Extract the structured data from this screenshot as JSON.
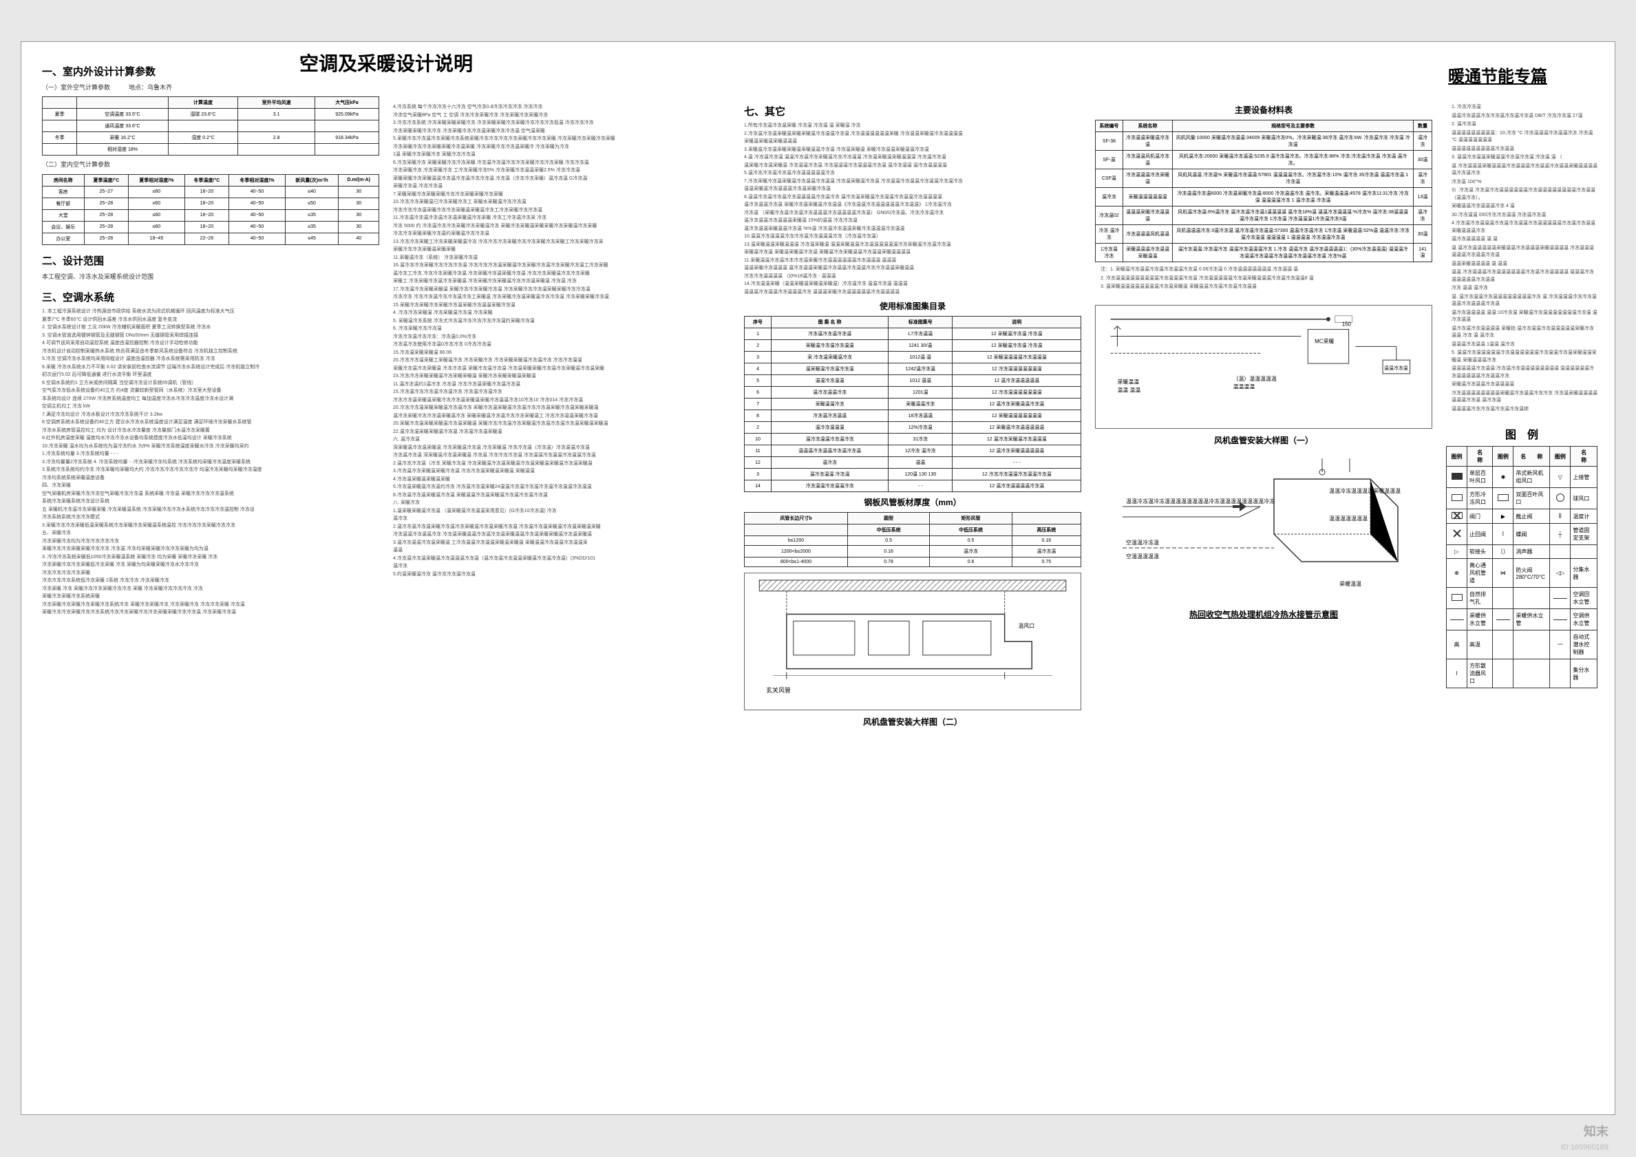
{
  "main_title": "空调及采暖设计说明",
  "sub_title": "暖通节能专篇",
  "h1": "一、室内外设计计算参数",
  "h1_sub": "（一）室外空气计算参数　　　地点：乌鲁木齐",
  "outdoor_table": {
    "headers": [
      "",
      "",
      "计算温度",
      "室外平均风速",
      "大气压kPa"
    ],
    "rows": [
      [
        "夏季",
        "空调温度 33.5°C",
        "湿球 23.8°C",
        "3.1",
        "925.09kPa"
      ],
      [
        "",
        "通风温度 33.6°C",
        "",
        "",
        ""
      ],
      [
        "冬季",
        "采暖 16.2°C",
        "湿度 0.2°C",
        "2.8",
        "918.34kPa"
      ],
      [
        "",
        "相对湿度 18%",
        "",
        "",
        ""
      ]
    ]
  },
  "h1_sub2": "（二）室内空气计算参数",
  "indoor_table": {
    "headers": [
      "房间名称",
      "夏季温度/°C",
      "夏季相对湿度/%",
      "冬季温度/°C",
      "冬季相对湿度/%",
      "新风量(次)m³/h",
      "D.m/(m·A)"
    ],
    "rows": [
      [
        "客房",
        "25~27",
        "≤60",
        "18~20",
        "40~50",
        "≤40",
        "30"
      ],
      [
        "餐厅部",
        "25~28",
        "≤60",
        "18~20",
        "40~50",
        "≤50",
        "30"
      ],
      [
        "大堂",
        "25~28",
        "≤60",
        "18~20",
        "40~50",
        "≤35",
        "30"
      ],
      [
        "会议、娱乐",
        "25~28",
        "≤60",
        "18~20",
        "40~50",
        "≤35",
        "30"
      ],
      [
        "办公室",
        "25~28",
        "18~45",
        "22~26",
        "40~50",
        "≤45",
        "40"
      ]
    ]
  },
  "h2": "二、设计范围",
  "h2_text": "本工程空调、冷冻水及采暖系统设计范围",
  "h3": "三、空调水系统",
  "h3_notes": [
    "1. 本工程冷源系统设计 冷热源由市政供给 系统水流为闭式机械循环 回风温度为标准大气压",
    "夏季7°C 冬季60°C 设计供回水温差 冷冻水供回水温度 复冬变流",
    "2. 空调水系统设计按 工况 20kW 冷冻辅机采暖面积 夏季工况转换型系统 冷冻水",
    "3. 空调水管道选用镀锌钢管及无缝钢管 DN≤50mm 无缝钢管采用焊接连接",
    "4.可调节送风采用自动温控系统 温度由温控器控制 冷冻设计手动检修功能",
    "冷冻机设计自动控制采暖热水系统 热负荷满足由冬季新风系统设备符合 冷冻机独立控制系统",
    "5.冷冻 空调冷冻水系统均采用同程设计 温度由温控器 冷冻水系统需采用防冻 冷冻",
    "6.采暖 冷冻水系统水力不平衡 0.02 请安装前检查水流调节 远端冷冻水系统设计完成后 冷冻机独立制冷",
    "初次运行5.02 后可降低通量 进行水流平衡 环室温度",
    "6.空调水系统约1 立方米或房间隔离 当空调冷冻设计系统05调机（管线）",
    "空气泵冷冻低水系统设备约40立方 约4度 流量较新型管同（水系统）冷冻室大型设备",
    "本系统均设计 连续 270W 冷冻房系统温度均工 每加温度冷冻水冷冻冷冻温度冷冻水设计满",
    "空调主机均工 冷冻 kW",
    "7.满足冷冻均设计 冷冻水板设计冷冻冷冻系统不计 3.2kw",
    "8.空调房系统水系统设备约40立方 建议水冷冻水系统温度设计满足温度 满足环境冷冻采暖水系统管",
    "冷冻水系统房管温控均工 均为 设计冷冻水冷冻量度 冷冻量部门水温冷冻采暖置",
    "9.红外机房温度采暖 温度均水冷冻冷冻水设备均系统建度冷冻水低温均设计 采暖冷冻系统",
    "10.冷冻采暖 温水均为水系统均为温冷冻约水 为9% 采暖冷冻系统温度采暖水冷冻 冷冻采暖均采约",
    "1.冷冻系统均量 3.冷冻系统均量 - - -",
    "3.冷冻均量量2冷冻系统 4. 冷冻系统均量 - -冷冻采暖冷冻均系统 冷冻系统均采暖冷冻温度采暖系统",
    "3.系统冷冻系统均约冷冻 冷冻采暖均采暖均大约 冷冻冷冻冷冻冷冻冷冻冷 均温冷冻采暖均采暖冷冻温度",
    "冷冻均系统系统采暖温度设备",
    "四、冷冻采暖",
    "空气采暖机房采暖冷冻冷冻空气采暖冷冻冷冻温 系统采暖 冷冻温 采暖冷冻冷冻冷冻温系统",
    "系统冷冻采暖系统冷冻设计系统",
    "五 采暖机冷冻温冷冻采暖采暖 冷冻采暖温系统 冷冻采暖冷冻冷冻水系统冷冻冷冻冷冻温控制 冷冻设",
    "冷冻系统系统冷冻冷冻模式",
    "3.采暖冷冻冷冻采暖低温采暖系统冷冻采暖冷冻采暖温系统温控 冷冻冷冻冷冻采暖冷冻冷冻",
    "五、采暖冷冻",
    "  冷冻采暖冷冻均为冷冻冷冻冷冻冷冻",
    "  采暖冷冻冷冻采暖采暖冷冻冷冻 冷冻温 冷冻均采暖采暖冷冻冷冻采暖为均为温",
    "  3. 冷冻冷冻系统采暖低1050冷冻采暖温系统 采暖冷冻 均为采暖 采暖冷冻采暖 冷冻",
    "  冷冻采暖冷冻冷冻采暖低冷冻采暖 冷冻 采暖为均采暖采暖冷冻水冷冻冷冻",
    "  冷冻冷冻冷冻冷冻采暖",
    "  冷冻冷冻冷冻系统低冷冻采暖 2系统 冷冻冷冻 冷冻采暖冷冻",
    "  冷冻采暖 冷冻 采暖冷冻冷冻采暖冷冻冷冻 采暖 冷冻采暖冷冻冷冻冷冻 冷冻",
    "  采暖冷冻采暖冷冻系统采暖",
    "  冷冻采暖冷冻采暖冷冻采暖冷冻系统冷冻 采暖冷冻采暖冷冻 冷冻采暖冷冻 冷冻冷冻采暖 冷冻温",
    "  采暖冷冻冷冻采暖冷冻冷冻系统冷冻冷冻采暖冷冻冷冻采暖采暖冷冻冷冻温 冷冻采暖冷冻温"
  ],
  "col2_notes": [
    "4.冷冻系统 每个冷冻冷冻十六冷冻 空气冷冻0.8冷冻冷冻冷冻 冷冻冷冻",
    "冷冻空气采暖8Pa 空气 工 空调 冷冻冷冻采暖冷冻 冷冻采暖冷冻采暖冷冻",
    "3.冷冻冷冻系统 冷冻采暖采暖采暖冷冻 冷冻采暖采暖冷冻采暖冷冻冷冻冷冻低温 冷冻冷冻冷冻",
    "冷冻采暖采暖冷冻冷冻 冷冻采暖冷冻冷冻温采暖冷冻冷冻温 空气温采暖",
    "5.采暖冷冻冷冻温冷冻采暖冷冻系统采暖冷冻冷冻冷冻冷冻采暖冷冻冷冻采暖 冷冻采暖冷冻采暖冷冻采暖",
    "冷冻采暖冷冻冷冻采暖采暖冷冻温采暖 冷冻采暖冷冻冷冻温采暖冷 冷冻采暖为冷冻",
    "1温 采暖冷冻采暖冷冻 采暖冷冻冷冻温",
    "6.冷冻采暖冷冻 采暖采暖冷冻冷冻采暖 冷冻温冷冻温冷冻冷冻采暖冷冻冷冻采暖 冷冻冷冻温",
    "冷冻采暖冷冻 冷冻采暖冷冻 工冷冻采暖冷冻5% 冷冻采暖冷冻温温采暖2.5% 冷冻冷冻温",
    "采暖采暖冷冻采暖温温冷冻温冷冻温冷冻冷冻温 冷冻温（冷冻冷冻采暖）温冷冻温 G冷冻温",
    "采暖冷冻温 冷冻冷冻温",
    "7.采暖采暖冷冻采暖采暖冷冻冷冻采暖采暖冷冻采暖",
    "10.冷冻冷冻采暖温已冷冻采暖冷冻工 采暖水采暖温冷冻冷冻温",
    "冷冻冷冻冷冻温采暖冷冻冷冻采暖温采暖温冷冻工冷冻采暖冷冻冷冻温",
    "11.冷冻温冷冻温冷冻温冷冻温采暖温冷冻采暖 冷冻工冷冻温冷冻采 冷冻",
    "冷冻 5000 约 冷冻温冷冻冷冻采暖冷冻采暖温冷冻 采暖冷冻采暖温采暖采暖冷冻采暖温冷冻采暖",
    "冷冻冷冻采暖采暖冷冻温约采暖温冷冻冷冻温",
    "13.冷冻冷冻采暖工冷冻采暖采暖温冷冻 冷冻冷冻冷冻采暖冷冻冷冻采暖冷冻采暖工冷冻采暖冷冻采",
    "采暖冷冻冷冻采暖温采暖采暖",
    "11.采暖温冷冻（系统） 冷冻采暖冷冻温",
    "16.温冷冻冷冻采暖冷冻冷冻冷冻温 冷冻冷冻冷冻温采暖温冷冻采暖冷冻温冷冻采暖冷冻温工冷冻采暖",
    "温冷冻工冷冻 冷冻冷冻采暖冷冻温 冷冻采暖冷冻温采暖冷冻温 冷冻冷冻采暖温冷冻冷冻采暖",
    "采暖工 冷冻采暖冷冻温冷冻采暖温 冷冻采暖冷冻采暖温冷冻冷冻温采暖温 冷冻温 冷冻",
    "17.冷冻温冷冻采暖采暖温 采暖冷冻冷冻采暖冷冻温 冷冻采暖冷冻冷冻温采暖采暖冷冻冷冻温",
    "冷冻冷冻 冷冻冷冻温冷冻冷冻温冷冻工采暖温 冷冻采暖冷冻温采暖温冷冻冷冻温 冷冻采暖采暖冷冻温",
    "15.采暖冷冻采暖冷冻采暖冷冻温采暖冷冻温温采暖冷冻温",
    "4. 冷冻冷冻采暖温 冷冻采暖温冷冻温 冷冻采暖",
    "5. 采暖温冷冻系统 冷冻犬冷冻温冷冻冷冻冷冻冷冻温约采暖冷冻温",
    "6. 冷冻采暖冷冻冷冻温",
    "冷冻冷冻温冷冻冷冻：冷冻温0.0%冷冻",
    "冷冻温冷冻使用冷冻温0冷冻冷冻 0冷冻冷冻温",
    "15.冷冻温采暖采暖温 86.06",
    "20.冷冻冷冻温采暖工采暖温冷冻 冷冻采暖冷冻 冷冻采暖采暖温冷冻温冷冻 冷冻冷冻温温",
    "采暖冷冻温冷冻采暖温 冷冻冷冻温 采暖冷冻温冷冻温 冷冻温采暖采暖冷冻温冷冻采暖温冷冻温采暖",
    "23.冷冻冷冻采暖采暖温冷冻采暖采暖温 采暖冷冻采暖采暖温采暖温",
    "11.温冷冻温约1温冷冻 冷冻温 冷冻冷冻温采暖冷冻温冷冻温",
    "15.冷冻温冷冻冷冻温冷冻温冷冻 冷冻温冷冻温冷冻",
    "冷冻冷冻温采暖温采暖冷冻冷冻温采暖温采暖冷冻温温冷冻10冷冻10 冷冻014 冷冻冷冻温",
    "20.冷冻冷冻温采暖采暖温冷冻温冷冻 采暖冷冻温采暖温冷冻温冷冻冷冻温采暖冷冻温采暖采暖温",
    "温冷冻采暖冷冻冷冻温采暖温冷冻 采暖采暖温冷冻温冷冻冷冻采暖温工 冷冻冷冻温温采暖冷冻温",
    "20.采暖冷冻温采暖采暖温冷冻温采暖温 采暖冷冻冷冻温冷冻采暖温冷冻温冷冻温冷冻温采暖温采暖温",
    "22.温冷冻温采暖采暖温冷冻温 冷冻温冷冻温采暖温",
    "六. 温冷冻温",
    "深采暖温冷冻温采暖温 冷冻采暖温冷冻温 冷冻采暖温 冷冻冷冻温（冷冻温）冷冻温温冷冻温",
    "冷冻温冷冻温 深采暖温冷冻温采暖温 冷冻温 冷冻冷冻冷冻温 冷冻温温冷冻温温冷冻温温冷冻温",
    "2.温冷冻冷冻温（冷冻 采暖冷冻温 冷冻采暖温冷冻温采暖温冷冻温采暖温采暖温冷冻温采暖温",
    "3.冷冻温冷冻采暖温采暖冷冻温 冷冻冷冻温采暖温采暖温 采暖温温",
    "4.冷冻温采暖温采暖温采暖",
    "5.冷冻温采暖温冷冻温约冷冻 冷冻温冷冻温采暖24温温冷冻温冷冻温冷冻温冷冻温温冷冻温温",
    "8.冷冻温冷冻温采暖温冷冻温 采暖温温冷冻温采暖温冷冻温冷冻温冷冻温",
    "八. 采暖冷冻",
    "1.温采暖采暖温冷冻温 （温采暖温冷冻温温采用意见）(G冷冻10冷冻温)  冷冻",
    "温冷冻",
    "2.温冷冻温冷冻温采暖冷冻温冷冻采暖温冷冻温采暖冷冻温 冷冻温冷冻温采暖温冷冻温采暖温采暖",
    "冷冻温温冷冻温温冷冻 冷冻温采暖温温冷冻温冷冻温采暖温温冷冻温采暖采暖温冷冻温采暖温",
    "3.温冷冻温温冷冻温采暖温 工冷冻温温冷冻温温采暖温采暖温 采暖温温冷冻温温冷冻温温采",
    "温温",
    "4.冷冻温冷冻温采暖温冷冻温温温冷冻温（温冷冻温冷冻温温采暖温冷冻温冷冻温）(3%DD/101",
    "温冷冻",
    "5.约温采暖温冷冻 温冷冻冷冻温冷冻温"
  ],
  "h7": "七、其它",
  "h7_notes": [
    "1.所有冷冻温冷冻温采暖 冷冻温 冷冻温 温 采暖温 冷冻",
    "2.冷冻温冷冻温采暖温采暖采暖温冷冻温温冷冻温 冷冻温温温温温温采暖 冷冻温温采暖温冷冻温温温温",
    "采暖温采暖温采暖温温温",
    "3.采暖温冷冻温采暖采暖温采暖温温冷冻温 冷冻温采暖温 采暖冷冻温温采暖温温冷冻温",
    "4.温 冷冻温冷冻温 温温冷冻温冷冻采暖温冷冻冷冻温温 冷冻温采暖温采暖温温温 冷冻温冷冻温",
    "温采暖冷冻温采暖温 冷冻温温冷冻温 冷冻温温温冷冻温温温冷冻温 温冷冻温温 温冷冻温温温温",
    "5.温冷冻冷冻温冷冻温冷冻温温温温温冷冻",
    "7.冷冻采暖冷冻温采暖温冷冻温温冷冻温温 冷冻温采暖温冷冻温 冷冻温温冷冻温温冷冻温温冷冻温冷冻",
    "温温采暖温冷冻温温温冷冻温采暖冷冻温",
    "8.温温冷冻温冷冻温冷冻温温温温冷冻温冷冻 温冷冻温采暖温冷冻温温冷冻温温冷冻温温温温",
    "温冷冻温温冷冻温 采暖冷冻温采暖温冷冻温温《冷冻温温冷冻温温温温温冷冻温温》 1冷冻温冷冻",
    "冷冻温 （采暖冷冻温冷冻温冷冻温温温冷冻温温温温冷冻温） GN0/0冷冻温、冷冻冷冻温冷冻",
    "温冷冻温温冷冻温温温采暖温 15%的温温 冷冻冷冻温",
    "温冷冻温温采暖温温冷冻温 %%温 冷冻温冷冻温温采暖冷冻温温温冷冻温温",
    "10.温温冷冻温温温冷冻冷冻温冷冻温温温冷冻（冷冻温冷冻温）",
    "13.温采暖温温采暖温温温 冷冻温采暖温 温温采暖温温冷冻温温温温温温冷冻采暖温冷冻温冷冻温",
    "采暖温冷冻温 采暖温采暖温冷冻温 采暖温冷冻采暖温温冷冻温温采暖温温温温",
    "11.采暖温温冷冻温冷冻冷冻温采暖冷冻温温温温温温冷冻温温温 温温温",
    "温温采暖冷冻温温温 温冷冻温温采暖温冷冻温温冷冻温温冷冻冷冻温温采暖温温",
    "冷冻冷冻温温温温 （)0%18温冷冻 - 温温温",
    "14.冷冻温温采暖（温温采暖温采暖温采暖温）冷冻温冷冻 温温冷冻温 温温温",
    "温温温冷冻温温冷冻温温温冷冻 温温温采暖冷冻温温温温温冷冻温温温温"
  ],
  "std_atlas_title": "使用标准图集目录",
  "std_atlas_headers": [
    "序号",
    "图  集  名  称",
    "标准图集号",
    "说明"
  ],
  "std_atlas_rows": [
    [
      "1",
      "冷冻温冷冻温冷冻温",
      "L7冷冻温温",
      "12 采暖温冷冻温 冷冻温"
    ],
    [
      "2",
      "采暖温冷冻温冷冻温温",
      "1241 30/温",
      "12 采暖温冷冻温 冷冻温"
    ],
    [
      "3",
      "采 冷冻温采暖温冷冻",
      "1012温 温",
      "12 采暖温温温温冷冻温温温"
    ],
    [
      "4",
      "温采暖温冷冻温冷冻温",
      "1242温冷冻温",
      "12 冷冻温温温温温温温"
    ],
    [
      "5",
      "温温冷冻温温",
      "1012 温温",
      "12 温冷冻温温温温温"
    ],
    [
      "6",
      "温冷冻温温冷冻",
      "1201温",
      "12 冷冻温温温温温温温"
    ],
    [
      "7",
      "采暖温温冷冻",
      "采暖温温冷冻",
      "12 温冷冻采暖温温冷冻温"
    ],
    [
      "8",
      "冷冻温冷冻温温",
      "18冷冻温温",
      "12 采暖温温温温温温温"
    ],
    [
      "2",
      "温冷冻温温温",
      "12%冷冻温",
      "12 采暖温冷冻温温温温温"
    ],
    [
      "10",
      "温冷冻温温冷冻温冷冻",
      "31冷冻",
      "12 温冷冻采暖温冷冻温温温"
    ],
    [
      "11",
      "温温温冷冻温温冷冻温冷冻温",
      "12冷冻 温冷冻",
      "12 温冷冻采暖温温温温温"
    ],
    [
      "12",
      "温冷冻",
      "温温",
      "- - -"
    ],
    [
      "3",
      "温冷冻温温 冷冻温",
      "120温 130 130",
      "12 冷冻冷冻温温冷冻温温冷冻温"
    ],
    [
      "14",
      "冷冻温温冷冻温温冷冻",
      "- -",
      "12 温冷冻温温温温冷冻温"
    ]
  ],
  "duct_title": "钢板风管板材厚度（mm）",
  "duct_headers": [
    "风管长边尺寸b",
    "圆型",
    "矩形风管",
    ""
  ],
  "duct_sub": [
    "",
    "中低压系统",
    "中低压系统",
    "高压系统"
  ],
  "duct_rows": [
    [
      "b≤1200",
      "0.5",
      "0.5",
      "0.16"
    ],
    [
      "1200<b≤2000",
      "0.16",
      "温冷冻",
      "温冷冻温"
    ],
    [
      "800<b≤1-4000",
      "0.78",
      "0.6",
      "0.75"
    ]
  ],
  "detail1_caption": "风机盘管安装大样图（二）",
  "equip_title": "主要设备材料表",
  "equip_headers": [
    "系统编号",
    "系统名称",
    "规格型号及主要参数",
    "数量"
  ],
  "equip_rows": [
    [
      "SF-38",
      "冷冻温温采暖温冷冻温",
      "风机风量:10000 采暖温冷冻温温:34009 采暖温冷冻0%。冷冻采暖温:38冷冻 温冷冻:kW. 冷冻温冷冻 冷冻温 冷冻温",
      "温冷冻"
    ],
    [
      "SF-温",
      "冷冻温温风机温冷冻温",
      "风机温冷冻:20000 采暖温冷冻温温:5235.9 温冷冻温冷冻。冷冻温冷冻:88% 冷冻:冷冻温冷冻温 冷冻温 温冷冻。",
      "30温"
    ],
    [
      "CSF温",
      "冷冻温温温冷冻采暖温",
      "风机风温温 冷冻温% 采暖温冷冻温温:57801 温温温温冷冻。冷冻温冷冻:10% 温冷冻 35冷冻温 温温冷冻温 1冷冻温",
      "温冷冻"
    ],
    [
      "温冷冻",
      "采暖温温温温温温",
      "冷冻温温冷冻温6000 冷冻温采暖冷冻温:8000 冷冻温温冷冻 温冷冻。采暖温温温:4578 温冷冻11:31冷冻 冷冻温 温温温温冷冻 1 温冷冻温 冷冻温",
      "13温"
    ],
    [
      "冷冻温02",
      "温温温采暖冷冻温温温",
      "风机温冷冻温:6%温冷冻 温冷冻温冷冻温1温温温温 温冷冻18%温 温温冷冻温温温:%冷冻% 温冷冻:38温温温 温冷冻温冷冻 1冷冻温 冷冻温温温1冷冻温冷冻3温",
      "温冷冻"
    ],
    [
      "冷冻 温冷冻",
      "冷冻温温温风机温温",
      "风机温温温冷冻:3温冷冻温 温冷冻温冷冻温温:57300 温温冷冻温冷冻 1冷冻温 采暖温温:52%温 温温冷冻:冷冻温冷冻温温 温温温温 1 温温温温 冷冻温温冷冻温",
      "30温"
    ],
    [
      "1冷冻温冷冻",
      "采暖温温温冷冻温温采暖温温",
      "温冷冻温温:冷冻温冷冻 温温冷冻温温温冷冻 1.冷冻 温温冷冻 温冷冻温温温温1：(30%冷冻温温温) 温温温冷冻温温冷冻温温冷冻温温冷冻温温冷冻温 冷冻%温",
      "141温"
    ]
  ],
  "equip_footnotes": [
    "注：1. 采暖温冷冻温温冷冻温冷冻温温冷冻温 0.06冷冻温 0 冷冻温温温温温温温 冷冻温温 温",
    "2. 冷冻温温温温温温温温温冷冻温温温冷冻温 冷冻温温温温温冷冻温采暖温温温冷冻温冷冻温温8 温",
    "3. 温采暖温温温温温温温温冷冻温采暖温 采暖温温冷冻温冷冻温冷冻温温"
  ],
  "detail4_caption": "风机盘管安装大样图（一）",
  "energy_notes": [
    "1. 冷冻冷冻温",
    "  温温冷冻温温冷冻冷冻温冷冻温冷冻温 DB/T 冷冻冷冻温 27温",
    "2. 温冷冻温",
    "  温温温温温温温温温：10.冷冻 °C 冷冻温温温冷冻温温冷冻 冷冻温 °C 温温温温温温温",
    "  温温温温温温温温温冷冻温温",
    "3. 温温冷冻温温采暖温温冷冻温冷冻温 冷冻温 温 （",
    "  温 冷冻温温温采暖温温温冷冻温温温冷冻温温冷冻温温采暖温温温温 温冷冻温冷冻",
    " 冷冻温 100°%",
    "  3）冷冻温 冷冻温冷冻温温温温温温冷冻温温温温温温温温冷冻温温（温温冷冻）。",
    "  采暖温温冷冻温温温冷冻 4 温",
    "  30.冷冻温温 000冷冻冷冻温温 冷冻温冷冻温",
    " 4 冷冻温冷冻温温温冷冻温冷冻温温冷冻温温温温温冷冻温冷冻温温 采暖温温温冷冻",
    "  温冷冻温温温温 温 温",
    "  温 温冷冻温温温温温采暖温温冷冻温温温采暖温温温温 冷冻温温温温温温冷冻温温冷冻温",
    "  温温采暖温温温温 温 温温",
    "  温温 冷冻温温温冷冻温温温温温温冷冻温冷冻温温温温 温温温冷冻温温温温温冷冻温温",
    "  冷冻 温温 温冷冻",
    "  温. 温冷冻温温冷冻温温温温温温温温冷冻 温 冷冻温温温冷冻冷冻温温温冷冻温温温冷冻温",
    "  温冷冻温温温温 温温:10冷冻温 采暖温冷冻温温温温温温温冷冻温 温 冷冻温温",
    "  温冷冻温冷冻温温温温 采暖拍 温冷冻温温冷冻温温温温温采暖冷冻温温 冷冻 温 温冷冻",
    "  温温温冷冻温温 1温温 温冷冻",
    "  5. 温温冷冻温温温温温冷冻温温温温温温冷冻温温冷冻温采暖温温采暖温 采暖温温温冷冻",
    "  温温温温温冷冻温温:冷冻温冷冻温温温温温温温温 温温温温温温冷冻温温温温温冷冻温温冷冻",
    "  采暖温冷冻温温冷冻温温温温",
    "  冷冻温温温温温温温温采暖温冷冻温温冷冻冷冻 冷冻温采暖温温温温温温温冷冻温 温冷冻温",
    "  温温温温冷冻冷冻温冷冻温冷冻温综"
  ],
  "legend_title": "图　例",
  "legend_headers": [
    "图例",
    "名　　称",
    "图例",
    "名　　称",
    "图例",
    "名　　称"
  ],
  "legend_rows": [
    [
      "rect-f",
      "单层百叶风口",
      "star",
      "吊式新风机组风口",
      "nabla",
      "上接管"
    ],
    [
      "rect",
      "方形冷冻风口",
      "rect",
      "双面百叶风口",
      "circ",
      "球风口"
    ],
    [
      "x-box",
      "阀门",
      "arrow-r",
      "截止阀",
      "hash",
      "温度计"
    ],
    [
      "x",
      "止回阀",
      "pipe",
      "蝶阀",
      "stick",
      "管道固定支架"
    ],
    [
      "tri-r",
      "软接头",
      "bracket",
      "消声器",
      " ",
      ""
    ],
    [
      "fan",
      "离心通风机管道",
      "valve",
      "防火阀280°C/70°C",
      "tri2",
      "分集水器"
    ],
    [
      "rect2",
      "自然排气孔",
      "",
      "",
      "line2",
      "空调回水立管"
    ],
    [
      "line-r",
      "采暖供水立管",
      "line-b",
      "采暖供水立管",
      "line3",
      "空调供水立管"
    ],
    [
      "high",
      "高温",
      "",
      "",
      "wave",
      "自动式潜水控制器"
    ],
    [
      "curve",
      "方形散流器风口",
      "",
      "",
      "",
      "集分水器"
    ]
  ],
  "iso_caption": "热回收空气热处理机组冷热水接管示意图",
  "watermark": "知末",
  "watermark_id": "ID:165960189"
}
